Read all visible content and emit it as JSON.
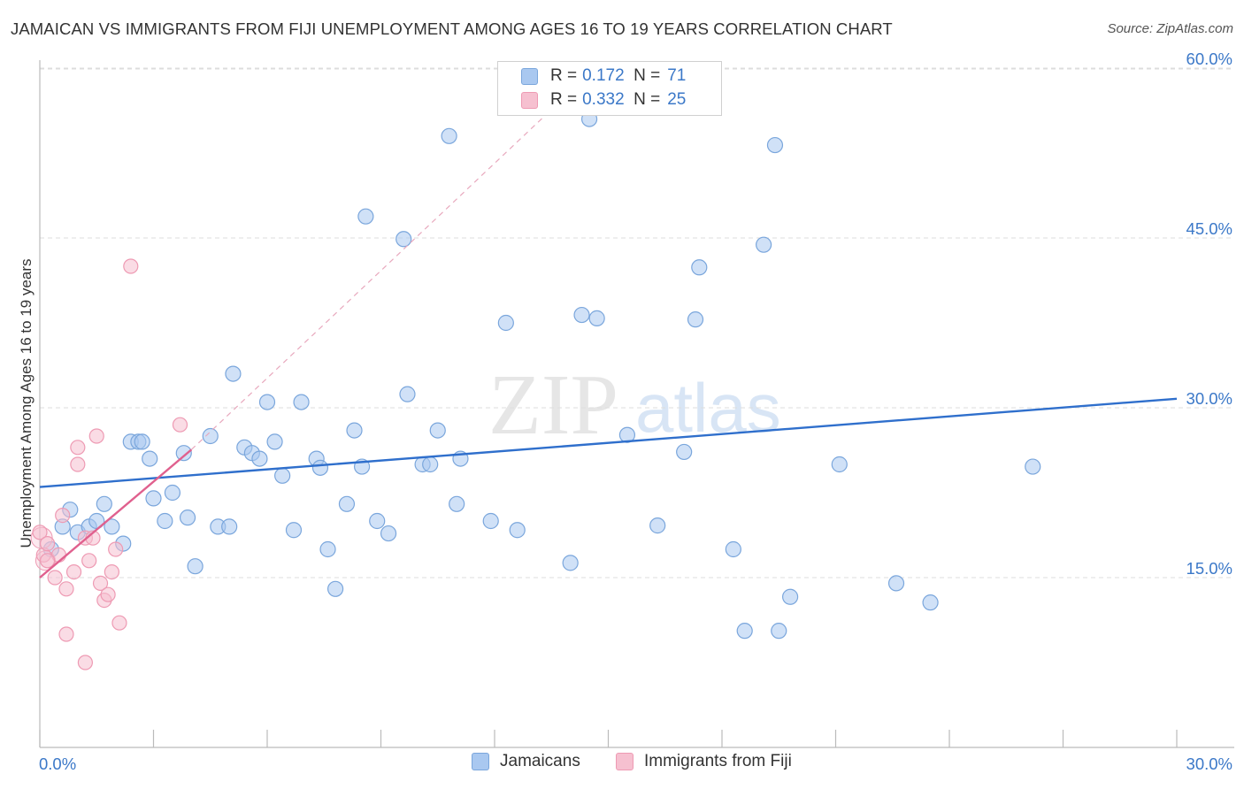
{
  "title": "JAMAICAN VS IMMIGRANTS FROM FIJI UNEMPLOYMENT AMONG AGES 16 TO 19 YEARS CORRELATION CHART",
  "source": "Source: ZipAtlas.com",
  "watermark": {
    "zip": "ZIP",
    "atlas": "atlas"
  },
  "colors": {
    "blue_fill": "#a9c8f0",
    "blue_stroke": "#7aa6dc",
    "blue_line": "#2f6fcc",
    "pink_fill": "#f6c0d0",
    "pink_stroke": "#ee9ab3",
    "pink_line": "#e0608e",
    "axis_text": "#3b78c8",
    "grid": "#dddddd"
  },
  "legend_top": {
    "rows": [
      {
        "r_label": "R =",
        "r_value": "0.172",
        "n_label": "N =",
        "n_value": "71"
      },
      {
        "r_label": "R =",
        "r_value": "0.332",
        "n_label": "N =",
        "n_value": "25"
      }
    ]
  },
  "legend_bottom": {
    "series1": "Jamaicans",
    "series2": "Immigrants from Fiji"
  },
  "chart_data": {
    "type": "scatter",
    "title": "JAMAICAN VS IMMIGRANTS FROM FIJI UNEMPLOYMENT AMONG AGES 16 TO 19 YEARS CORRELATION CHART",
    "xlabel": "",
    "ylabel": "Unemployment Among Ages 16 to 19 years",
    "xlim": [
      0,
      30
    ],
    "ylim": [
      0,
      60
    ],
    "x_tick_labels": [
      "0.0%",
      "30.0%"
    ],
    "y_ticks": [
      15,
      30,
      45,
      60
    ],
    "y_tick_labels": [
      "15.0%",
      "30.0%",
      "45.0%",
      "60.0%"
    ],
    "series": [
      {
        "name": "Jamaicans",
        "r": 0.172,
        "n": 71,
        "trend": {
          "x": [
            0,
            30
          ],
          "y": [
            23.0,
            30.8
          ]
        },
        "points": [
          [
            0.3,
            17.5
          ],
          [
            0.6,
            19.5
          ],
          [
            0.8,
            21.0
          ],
          [
            1.0,
            19.0
          ],
          [
            1.3,
            19.5
          ],
          [
            1.5,
            20.0
          ],
          [
            1.7,
            21.5
          ],
          [
            1.9,
            19.5
          ],
          [
            2.2,
            18.0
          ],
          [
            2.4,
            27.0
          ],
          [
            2.6,
            27.0
          ],
          [
            2.9,
            25.5
          ],
          [
            3.0,
            22.0
          ],
          [
            3.3,
            20.0
          ],
          [
            3.5,
            22.5
          ],
          [
            3.8,
            26.0
          ],
          [
            3.9,
            20.3
          ],
          [
            4.1,
            16.0
          ],
          [
            4.5,
            27.5
          ],
          [
            4.7,
            19.5
          ],
          [
            5.0,
            19.5
          ],
          [
            5.1,
            33.0
          ],
          [
            5.4,
            26.5
          ],
          [
            5.6,
            26.0
          ],
          [
            5.8,
            25.5
          ],
          [
            6.0,
            30.5
          ],
          [
            6.2,
            27.0
          ],
          [
            6.4,
            24.0
          ],
          [
            6.7,
            19.2
          ],
          [
            6.9,
            30.5
          ],
          [
            7.3,
            25.5
          ],
          [
            7.4,
            24.7
          ],
          [
            7.6,
            17.5
          ],
          [
            7.8,
            14.0
          ],
          [
            8.1,
            21.5
          ],
          [
            8.3,
            28.0
          ],
          [
            8.5,
            24.8
          ],
          [
            8.6,
            46.9
          ],
          [
            8.9,
            20.0
          ],
          [
            9.2,
            18.9
          ],
          [
            9.6,
            44.9
          ],
          [
            9.7,
            31.2
          ],
          [
            10.1,
            25.0
          ],
          [
            10.3,
            25.0
          ],
          [
            10.5,
            28.0
          ],
          [
            10.8,
            54.0
          ],
          [
            11.0,
            21.5
          ],
          [
            11.1,
            25.5
          ],
          [
            11.9,
            20.0
          ],
          [
            12.3,
            37.5
          ],
          [
            12.6,
            19.2
          ],
          [
            14.0,
            16.3
          ],
          [
            14.3,
            38.2
          ],
          [
            14.5,
            55.5
          ],
          [
            14.7,
            37.9
          ],
          [
            15.5,
            27.6
          ],
          [
            16.3,
            19.6
          ],
          [
            17.0,
            26.1
          ],
          [
            17.3,
            37.8
          ],
          [
            17.4,
            42.4
          ],
          [
            18.3,
            17.5
          ],
          [
            18.6,
            10.3
          ],
          [
            19.1,
            44.4
          ],
          [
            19.4,
            53.2
          ],
          [
            19.5,
            10.3
          ],
          [
            19.8,
            13.3
          ],
          [
            21.1,
            25.0
          ],
          [
            22.6,
            14.5
          ],
          [
            23.5,
            12.8
          ],
          [
            26.2,
            24.8
          ],
          [
            2.7,
            27.0
          ]
        ]
      },
      {
        "name": "Immigrants from Fiji",
        "r": 0.332,
        "n": 25,
        "trend": {
          "x": [
            0,
            4.0
          ],
          "y": [
            15.0,
            26.3
          ]
        },
        "trend_ext": {
          "x": [
            4.0,
            14.5
          ],
          "y": [
            26.3,
            59.5
          ]
        },
        "points": [
          [
            0.0,
            19.0
          ],
          [
            0.1,
            17.0
          ],
          [
            0.2,
            18.0
          ],
          [
            0.4,
            15.0
          ],
          [
            0.5,
            17.0
          ],
          [
            0.6,
            20.5
          ],
          [
            0.7,
            14.0
          ],
          [
            0.7,
            10.0
          ],
          [
            0.9,
            15.5
          ],
          [
            1.0,
            26.5
          ],
          [
            1.0,
            25.0
          ],
          [
            1.2,
            18.5
          ],
          [
            1.2,
            7.5
          ],
          [
            1.3,
            16.5
          ],
          [
            1.4,
            18.5
          ],
          [
            1.5,
            27.5
          ],
          [
            1.6,
            14.5
          ],
          [
            1.7,
            13.0
          ],
          [
            1.8,
            13.5
          ],
          [
            1.9,
            15.5
          ],
          [
            2.0,
            17.5
          ],
          [
            2.1,
            11.0
          ],
          [
            2.4,
            42.5
          ],
          [
            3.7,
            28.5
          ],
          [
            0.2,
            16.5
          ]
        ]
      }
    ]
  }
}
